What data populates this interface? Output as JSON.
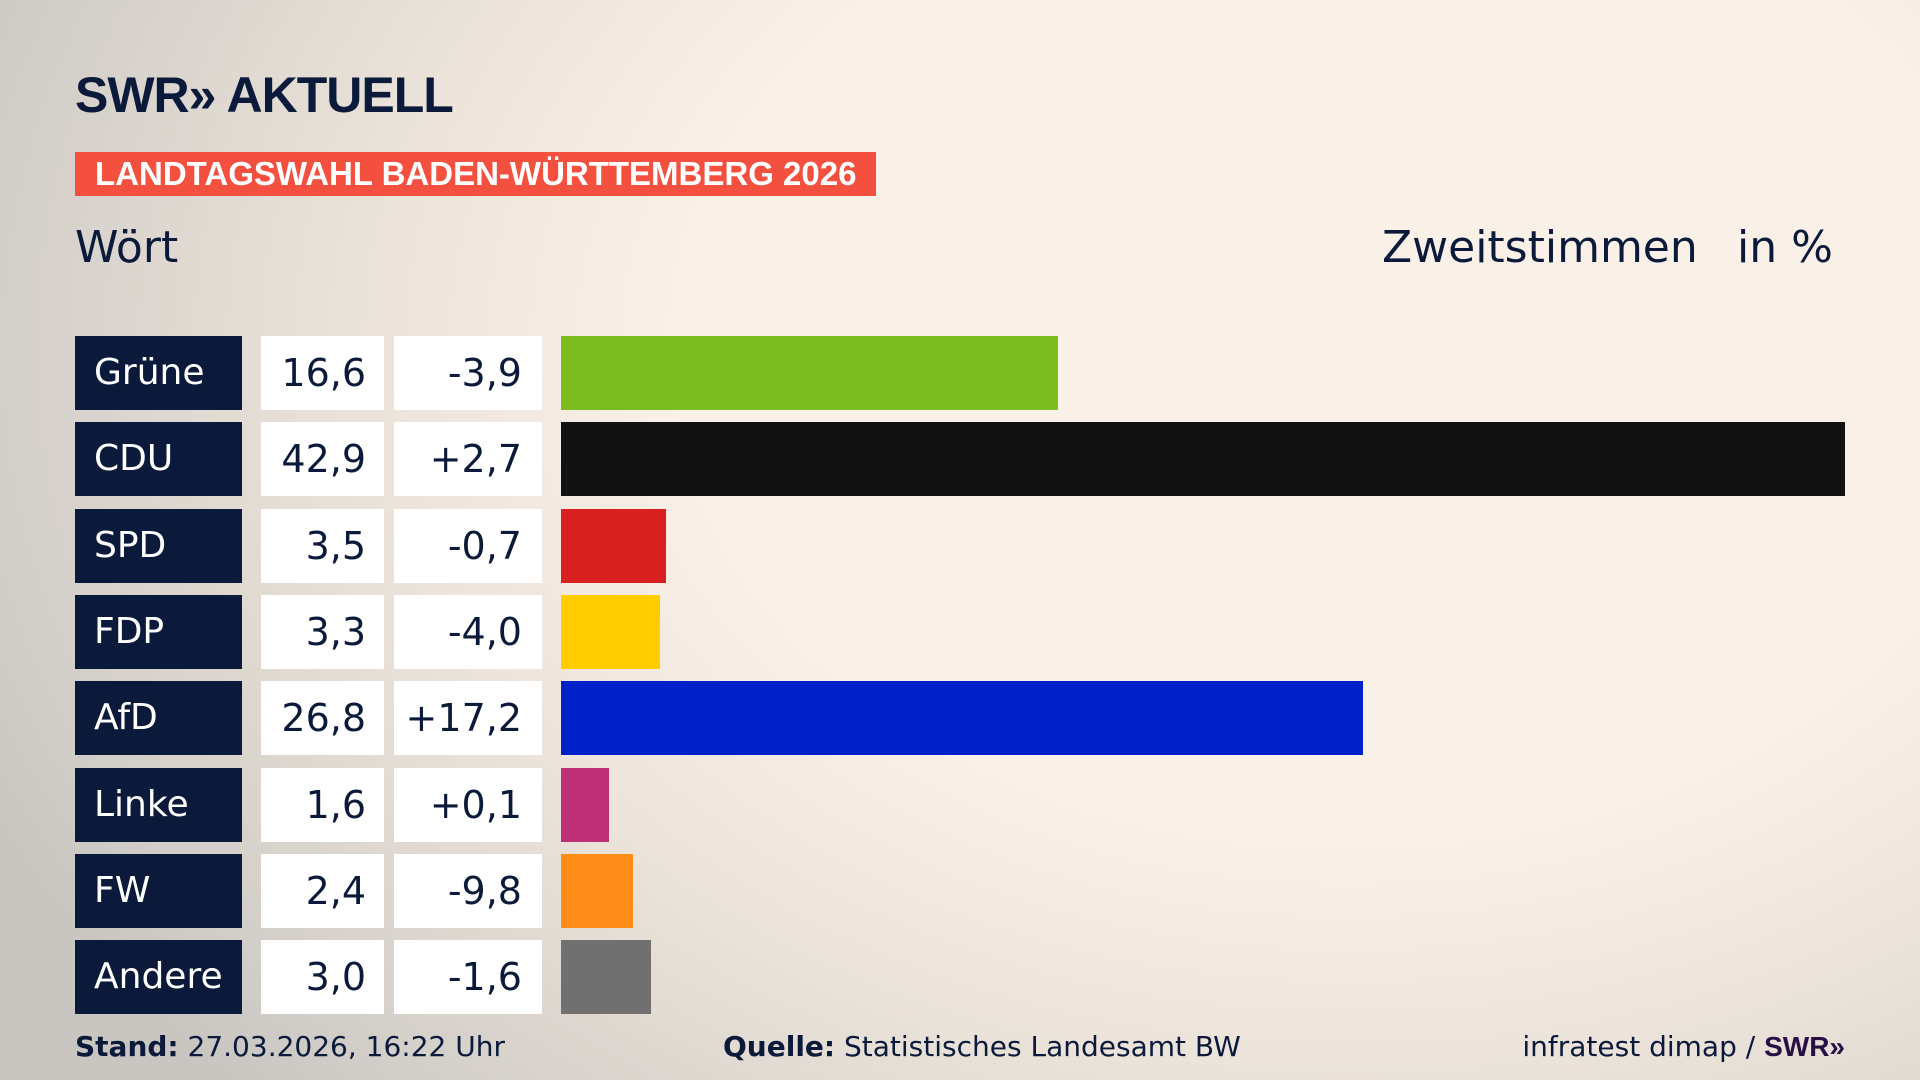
{
  "header": {
    "logo": "SWR» AKTUELL",
    "banner": "LANDTAGSWAHL BADEN-WÜRTTEMBERG 2026",
    "region": "Wört",
    "measure": "Zweitstimmen",
    "unit": "in %"
  },
  "chart_data": {
    "type": "bar",
    "orientation": "horizontal",
    "title": "LANDTAGSWAHL BADEN-WÜRTTEMBERG 2026",
    "subtitle": "Wört",
    "ylabel": "Zweitstimmen",
    "unit": "in %",
    "categories": [
      "Grüne",
      "CDU",
      "SPD",
      "FDP",
      "AfD",
      "Linke",
      "FW",
      "Andere"
    ],
    "values": [
      16.6,
      42.9,
      3.5,
      3.3,
      26.8,
      1.6,
      2.4,
      3.0
    ],
    "value_labels": [
      "16,6",
      "42,9",
      "3,5",
      "3,3",
      "26,8",
      "1,6",
      "2,4",
      "3,0"
    ],
    "change_labels": [
      "-3,9",
      "+2,7",
      "-0,7",
      "-4,0",
      "+17,2",
      "+0,1",
      "-9,8",
      "-1,6"
    ],
    "changes": [
      -3.9,
      2.7,
      -0.7,
      -4.0,
      17.2,
      0.1,
      -9.8,
      -1.6
    ],
    "colors": [
      "#7bbd1e",
      "#121212",
      "#d7201f",
      "#ffcc00",
      "#0020c8",
      "#bd2f77",
      "#ff8c16",
      "#707070"
    ],
    "xlim": [
      0,
      42.9
    ],
    "grid": false
  },
  "footer": {
    "stand_label": "Stand:",
    "stand_value": "27.03.2026, 16:22 Uhr",
    "source_label": "Quelle:",
    "source_value": "Statistisches Landesamt BW",
    "credit": "infratest dimap / ",
    "credit_logo": "SWR»"
  }
}
